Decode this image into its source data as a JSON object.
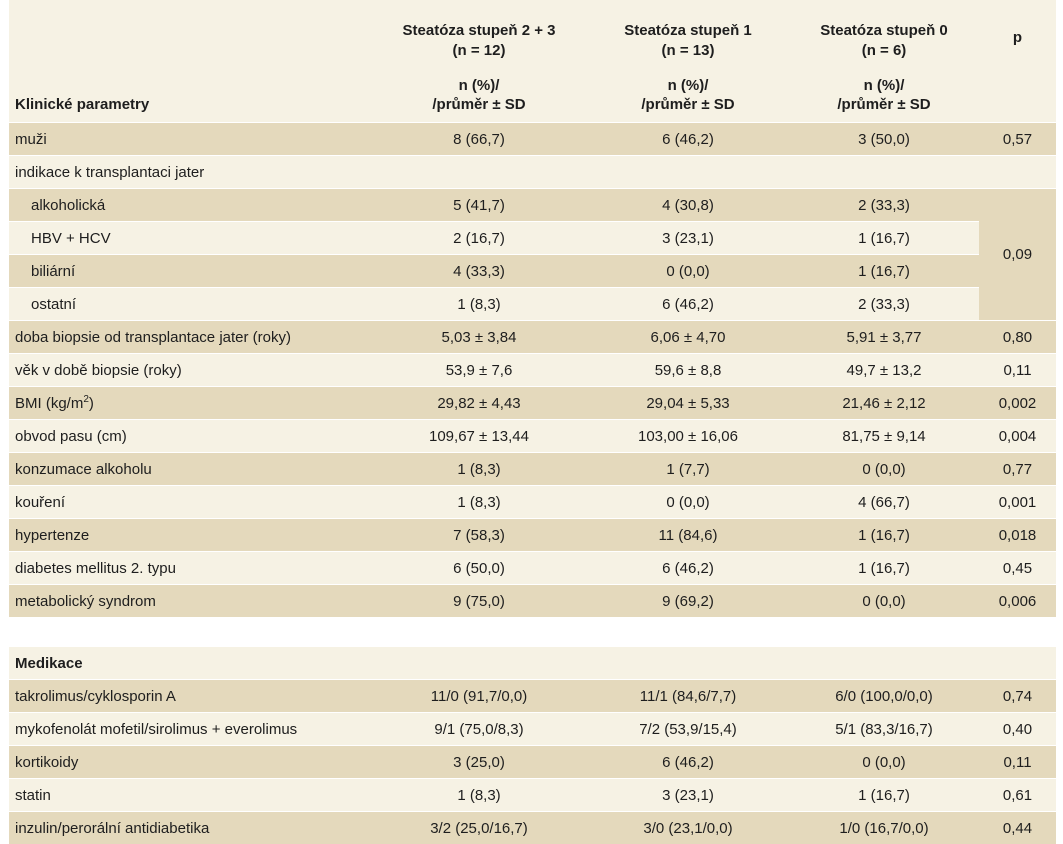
{
  "header": {
    "params_label": "Klinické parametry",
    "groups": [
      {
        "name": "Steatóza stupeň 2 + 3",
        "n": "(n = 12)",
        "stat1": "n (%)/",
        "stat2": "/průměr ± SD"
      },
      {
        "name": "Steatóza stupeň 1",
        "n": "(n = 13)",
        "stat1": "n (%)/",
        "stat2": "/průměr ± SD"
      },
      {
        "name": "Steatóza stupeň 0",
        "n": "(n = 6)",
        "stat1": "n (%)/",
        "stat2": "/průměr ± SD"
      }
    ],
    "p_label": "p"
  },
  "rows": [
    {
      "label": "muži",
      "v1": "8 (66,7)",
      "v2": "6 (46,2)",
      "v3": "3 (50,0)",
      "p": "0,57"
    },
    {
      "label": "indikace k transplantaci jater",
      "v1": "",
      "v2": "",
      "v3": "",
      "p": ""
    },
    {
      "label": "alkoholická",
      "v1": "5 (41,7)",
      "v2": "4 (30,8)",
      "v3": "2 (33,3)"
    },
    {
      "label": "HBV + HCV",
      "v1": "2 (16,7)",
      "v2": "3 (23,1)",
      "v3": "1 (16,7)"
    },
    {
      "label": "biliární",
      "v1": "4 (33,3)",
      "v2": "0 (0,0)",
      "v3": "1 (16,7)"
    },
    {
      "label": "ostatní",
      "v1": "1 (8,3)",
      "v2": "6 (46,2)",
      "v3": "2 (33,3)"
    },
    {
      "label": "doba biopsie od transplantace jater (roky)",
      "v1": "5,03 ± 3,84",
      "v2": "6,06 ± 4,70",
      "v3": "5,91 ± 3,77",
      "p": "0,80"
    },
    {
      "label": "věk v době biopsie (roky)",
      "v1": "53,9 ± 7,6",
      "v2": "59,6 ± 8,8",
      "v3": "49,7 ± 13,2",
      "p": "0,11"
    },
    {
      "label_pre": "BMI (kg/m",
      "label_sup": "2",
      "label_post": ")",
      "v1": "29,82 ± 4,43",
      "v2": "29,04 ± 5,33",
      "v3": "21,46 ± 2,12",
      "p": "0,002"
    },
    {
      "label": "obvod pasu (cm)",
      "v1": "109,67 ± 13,44",
      "v2": "103,00 ± 16,06",
      "v3": "81,75 ± 9,14",
      "p": "0,004"
    },
    {
      "label": "konzumace alkoholu",
      "v1": "1 (8,3)",
      "v2": "1 (7,7)",
      "v3": "0 (0,0)",
      "p": "0,77"
    },
    {
      "label": "kouření",
      "v1": "1 (8,3)",
      "v2": "0 (0,0)",
      "v3": "4 (66,7)",
      "p": "0,001"
    },
    {
      "label": "hypertenze",
      "v1": "7 (58,3)",
      "v2": "11 (84,6)",
      "v3": "1 (16,7)",
      "p": "0,018"
    },
    {
      "label": "diabetes mellitus 2. typu",
      "v1": "6 (50,0)",
      "v2": "6 (46,2)",
      "v3": "1 (16,7)",
      "p": "0,45"
    },
    {
      "label": "metabolický syndrom",
      "v1": "9 (75,0)",
      "v2": "9 (69,2)",
      "v3": "0 (0,0)",
      "p": "0,006"
    }
  ],
  "indication_p": "0,09",
  "section2": {
    "title": "Medikace"
  },
  "meds": [
    {
      "label": "takrolimus/cyklosporin A",
      "v1": "11/0 (91,7/0,0)",
      "v2": "11/1 (84,6/7,7)",
      "v3": "6/0 (100,0/0,0)",
      "p": "0,74"
    },
    {
      "label": "mykofenolát mofetil/sirolimus + everolimus",
      "v1": "9/1 (75,0/8,3)",
      "v2": "7/2 (53,9/15,4)",
      "v3": "5/1 (83,3/16,7)",
      "p": "0,40"
    },
    {
      "label": "kortikoidy",
      "v1": "3 (25,0)",
      "v2": "6 (46,2)",
      "v3": "0 (0,0)",
      "p": "0,11"
    },
    {
      "label": "statin",
      "v1": "1 (8,3)",
      "v2": "3 (23,1)",
      "v3": "1 (16,7)",
      "p": "0,61"
    },
    {
      "label": "inzulin/perorální antidiabetika",
      "v1": "3/2 (25,0/16,7)",
      "v2": "3/0 (23,1/0,0)",
      "v3": "1/0 (16,7/0,0)",
      "p": "0,44"
    }
  ],
  "colors": {
    "dark_row": "#e4d9bc",
    "light_row": "#f6f2e4"
  }
}
